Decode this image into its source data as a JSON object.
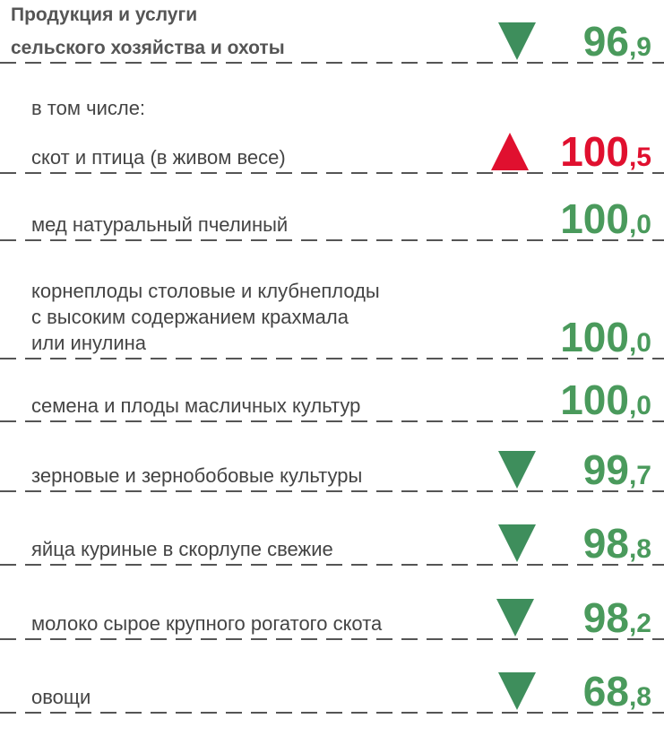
{
  "header": {
    "label": [
      "Продукция и услуги",
      "сельского хозяйства и охоты"
    ],
    "value": {
      "int": "96",
      "dec": ",9"
    },
    "trend": "down"
  },
  "subheading": "в том числе:",
  "items": [
    {
      "label": [
        "скот и птица (в живом весе)"
      ],
      "value": {
        "int": "100",
        "dec": ",5"
      },
      "trend": "up"
    },
    {
      "label": [
        "мед натуральный пчелиный"
      ],
      "value": {
        "int": "100",
        "dec": ",0"
      },
      "trend": null
    },
    {
      "label": [
        "корнеплоды столовые и клубнеплоды",
        "с высоким содержанием крахмала",
        "или инулина"
      ],
      "value": {
        "int": "100",
        "dec": ",0"
      },
      "trend": null
    },
    {
      "label": [
        "семена и плоды масличных культур"
      ],
      "value": {
        "int": "100",
        "dec": ",0"
      },
      "trend": null
    },
    {
      "label": [
        "зерновые и зернобобовые культуры"
      ],
      "value": {
        "int": "99",
        "dec": ",7"
      },
      "trend": "down"
    },
    {
      "label": [
        "яйца куриные в скорлупе свежие"
      ],
      "value": {
        "int": "98",
        "dec": ",8"
      },
      "trend": "down"
    },
    {
      "label": [
        "молоко сырое крупного рогатого скота"
      ],
      "value": {
        "int": "98",
        "dec": ",2"
      },
      "trend": "down"
    },
    {
      "label": [
        "овощи"
      ],
      "value": {
        "int": "68",
        "dec": ",8"
      },
      "trend": "down"
    }
  ]
}
